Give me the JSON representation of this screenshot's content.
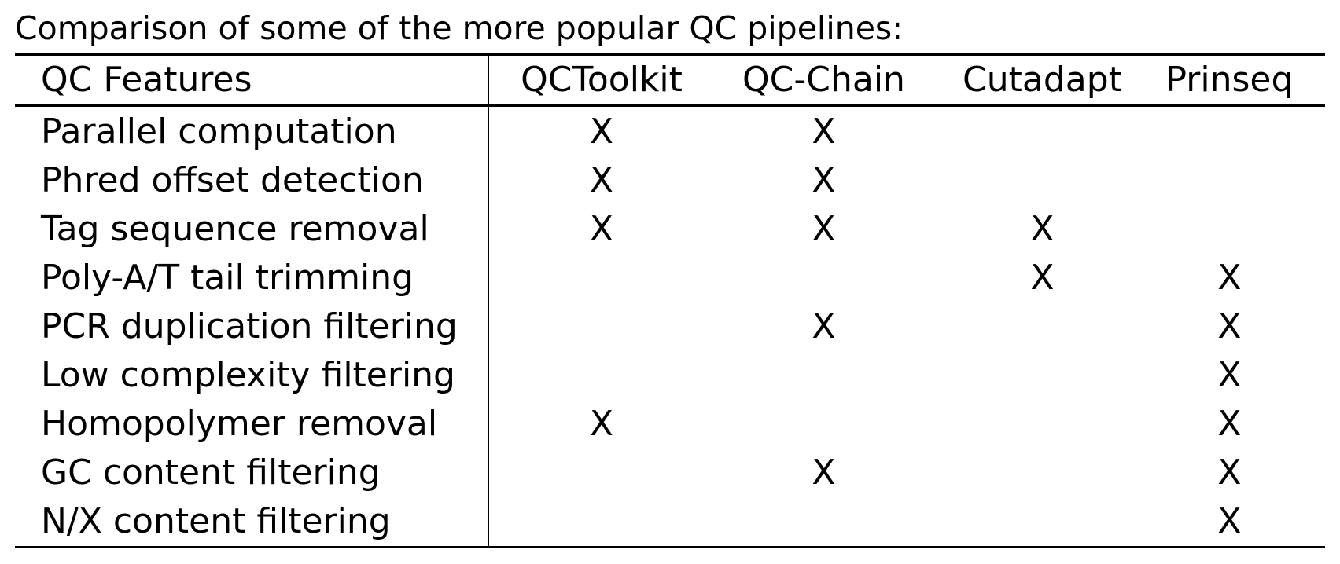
{
  "caption": "Comparison of some of the more popular QC pipelines:",
  "table": {
    "headers": [
      "QC Features",
      "QCToolkit",
      "QC-Chain",
      "Cutadapt",
      "Prinseq"
    ],
    "rows": [
      [
        "Parallel computation",
        "X",
        "X",
        "",
        ""
      ],
      [
        "Phred offset detection",
        "X",
        "X",
        "",
        ""
      ],
      [
        "Tag sequence removal",
        "X",
        "X",
        "X",
        ""
      ],
      [
        "Poly-A/T tail trimming",
        "",
        "",
        "X",
        "X"
      ],
      [
        "PCR duplication filtering",
        "",
        "X",
        "",
        "X"
      ],
      [
        "Low complexity filtering",
        "",
        "",
        "",
        "X"
      ],
      [
        "Homopolymer removal",
        "X",
        "",
        "",
        "X"
      ],
      [
        "GC content filtering",
        "",
        "X",
        "",
        "X"
      ],
      [
        "N/X content filtering",
        "",
        "",
        "",
        "X"
      ]
    ]
  }
}
